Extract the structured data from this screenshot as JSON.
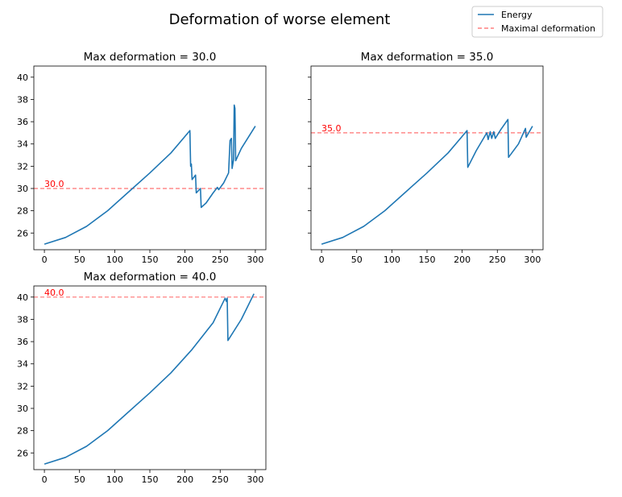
{
  "figure": {
    "title": "Deformation of worse element"
  },
  "legend": {
    "position": "top-right",
    "entries": [
      {
        "label": "Energy",
        "color": "#1f77b4",
        "style": "solid"
      },
      {
        "label": "Maximal deformation",
        "color": "#ff0000",
        "style": "dashed"
      }
    ]
  },
  "colors": {
    "energy": "#1f77b4",
    "threshold": "#ff0000"
  },
  "chart_data": [
    {
      "type": "line",
      "title": "Max deformation = 30.0",
      "xlabel": "",
      "ylabel": "",
      "xlim": [
        -15,
        315
      ],
      "ylim": [
        24.5,
        41.0
      ],
      "xticks": [
        0,
        50,
        100,
        150,
        200,
        250,
        300
      ],
      "yticks": [
        26,
        28,
        30,
        32,
        34,
        36,
        38,
        40
      ],
      "show_ytick_labels": true,
      "threshold": 30.0,
      "threshold_label": "30.0",
      "series": [
        {
          "points": [
            [
              0,
              25
            ],
            [
              30,
              25.6
            ],
            [
              60,
              26.6
            ],
            [
              90,
              28.0
            ],
            [
              120,
              29.7
            ],
            [
              150,
              31.4
            ],
            [
              180,
              33.2
            ],
            [
              207,
              35.2
            ],
            [
              208,
              32.0
            ],
            [
              209,
              32.2
            ],
            [
              210,
              30.8
            ],
            [
              215,
              31.2
            ],
            [
              216,
              29.6
            ],
            [
              222,
              30.0
            ],
            [
              223,
              28.3
            ],
            [
              230,
              28.7
            ],
            [
              240,
              29.6
            ],
            [
              246,
              30.1
            ],
            [
              248,
              29.9
            ],
            [
              255,
              30.5
            ],
            [
              262,
              31.4
            ],
            [
              264,
              34.3
            ],
            [
              266,
              34.5
            ],
            [
              267,
              31.8
            ],
            [
              269,
              32.6
            ],
            [
              270,
              37.5
            ],
            [
              271,
              37.2
            ],
            [
              272,
              32.5
            ],
            [
              280,
              33.6
            ],
            [
              290,
              34.6
            ],
            [
              300,
              35.6
            ]
          ]
        }
      ]
    },
    {
      "type": "line",
      "title": "Max deformation = 35.0",
      "xlabel": "",
      "ylabel": "",
      "xlim": [
        -15,
        315
      ],
      "ylim": [
        24.5,
        41.0
      ],
      "xticks": [
        0,
        50,
        100,
        150,
        200,
        250,
        300
      ],
      "yticks": [
        26,
        28,
        30,
        32,
        34,
        36,
        38,
        40
      ],
      "show_ytick_labels": false,
      "threshold": 35.0,
      "threshold_label": "35.0",
      "series": [
        {
          "points": [
            [
              0,
              25
            ],
            [
              30,
              25.6
            ],
            [
              60,
              26.6
            ],
            [
              90,
              28.0
            ],
            [
              120,
              29.7
            ],
            [
              150,
              31.4
            ],
            [
              180,
              33.2
            ],
            [
              207,
              35.2
            ],
            [
              208,
              31.9
            ],
            [
              220,
              33.4
            ],
            [
              235,
              35.0
            ],
            [
              237,
              34.4
            ],
            [
              240,
              35.1
            ],
            [
              242,
              34.5
            ],
            [
              245,
              35.1
            ],
            [
              247,
              34.5
            ],
            [
              255,
              35.3
            ],
            [
              265,
              36.2
            ],
            [
              266,
              32.8
            ],
            [
              280,
              34.0
            ],
            [
              290,
              35.4
            ],
            [
              291,
              34.6
            ],
            [
              300,
              35.6
            ]
          ]
        }
      ]
    },
    {
      "type": "line",
      "title": "Max deformation = 40.0",
      "xlabel": "",
      "ylabel": "",
      "xlim": [
        -15,
        315
      ],
      "ylim": [
        24.5,
        41.0
      ],
      "xticks": [
        0,
        50,
        100,
        150,
        200,
        250,
        300
      ],
      "yticks": [
        26,
        28,
        30,
        32,
        34,
        36,
        38,
        40
      ],
      "show_ytick_labels": true,
      "threshold": 40.0,
      "threshold_label": "40.0",
      "series": [
        {
          "points": [
            [
              0,
              25
            ],
            [
              30,
              25.6
            ],
            [
              60,
              26.6
            ],
            [
              90,
              28.0
            ],
            [
              120,
              29.7
            ],
            [
              150,
              31.4
            ],
            [
              180,
              33.2
            ],
            [
              210,
              35.3
            ],
            [
              240,
              37.7
            ],
            [
              257,
              39.9
            ],
            [
              259,
              39.6
            ],
            [
              260,
              39.9
            ],
            [
              261,
              36.1
            ],
            [
              280,
              38.0
            ],
            [
              298,
              40.3
            ]
          ]
        }
      ]
    }
  ]
}
